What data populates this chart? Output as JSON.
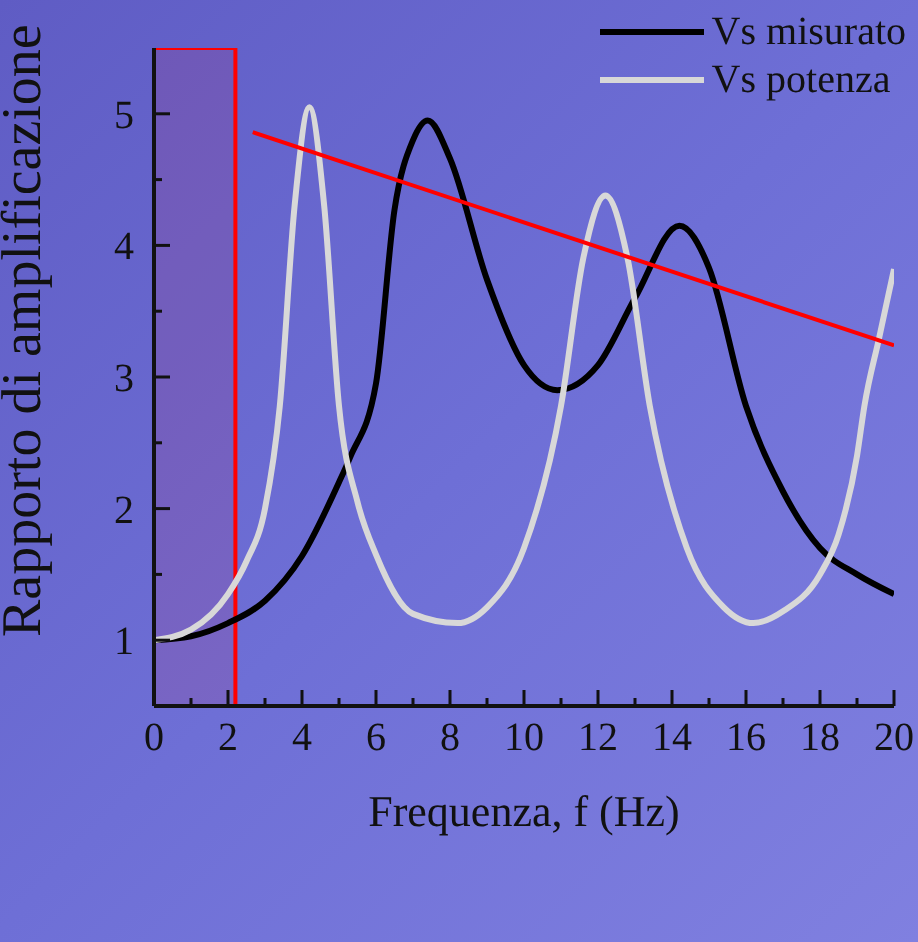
{
  "chart_data": {
    "type": "line",
    "xlabel": "Frequenza, f (Hz)",
    "ylabel": "Rapporto di amplificazione",
    "xlim": [
      0,
      20
    ],
    "ylim": [
      0.5,
      5.5
    ],
    "xticks": [
      0,
      {
        "value": 1,
        "label": null
      },
      2,
      {
        "value": 3,
        "label": null
      },
      4,
      {
        "value": 5,
        "label": null
      },
      6,
      {
        "value": 7,
        "label": null
      },
      8,
      {
        "value": 9,
        "label": null
      },
      10,
      {
        "value": 11,
        "label": null
      },
      12,
      {
        "value": 13,
        "label": null
      },
      14,
      {
        "value": 15,
        "label": null
      },
      16,
      {
        "value": 17,
        "label": null
      },
      18,
      {
        "value": 19,
        "label": null
      },
      20
    ],
    "yticks": [
      1,
      {
        "value": 1.5,
        "label": null
      },
      2,
      {
        "value": 2.5,
        "label": null
      },
      3,
      {
        "value": 3.5,
        "label": null
      },
      4,
      {
        "value": 4.5,
        "label": null
      },
      5
    ],
    "grid": false,
    "legend": "top right",
    "marker": "none",
    "line_style": "solid",
    "series": [
      {
        "name": "Vs misurato",
        "color": "#000000",
        "x": [
          0,
          1,
          2,
          3,
          4,
          5,
          5.3,
          6,
          6.5,
          7,
          7.4,
          8,
          9,
          10,
          10.9,
          12,
          13,
          14.2,
          15,
          16,
          17,
          18,
          19,
          20
        ],
        "values": [
          1,
          1.03,
          1.13,
          1.3,
          1.64,
          2.2,
          2.39,
          2.95,
          4.27,
          4.8,
          4.95,
          4.66,
          3.74,
          3.09,
          2.9,
          3.09,
          3.6,
          4.15,
          3.83,
          2.78,
          2.13,
          1.7,
          1.5,
          1.35
        ]
      },
      {
        "name": "Vs potenza",
        "color": "#d8d8d8",
        "x": [
          0,
          1,
          2,
          2.5,
          3,
          3.4,
          3.8,
          4.2,
          4.6,
          5,
          5.5,
          6,
          7,
          8.2,
          9,
          10,
          11,
          11.6,
          12.2,
          12.8,
          13.4,
          14.4,
          15.4,
          16.2,
          17,
          18,
          18.5,
          19,
          19.2,
          19.6,
          20
        ],
        "values": [
          1,
          1.08,
          1.35,
          1.6,
          2,
          2.78,
          4.3,
          5.05,
          4.3,
          2.78,
          2.05,
          1.65,
          1.2,
          1.13,
          1.25,
          1.7,
          2.78,
          3.9,
          4.38,
          3.9,
          2.78,
          1.7,
          1.25,
          1.13,
          1.22,
          1.5,
          1.8,
          2.4,
          2.78,
          3.3,
          3.82
        ]
      },
      {
        "color": "#ff0000",
        "x": [
          2.67,
          20
        ],
        "values": [
          4.86,
          3.24
        ]
      }
    ],
    "bands": [
      {
        "axis": "x",
        "from": 0,
        "to": 2.2,
        "color": "#ff0000"
      }
    ]
  }
}
